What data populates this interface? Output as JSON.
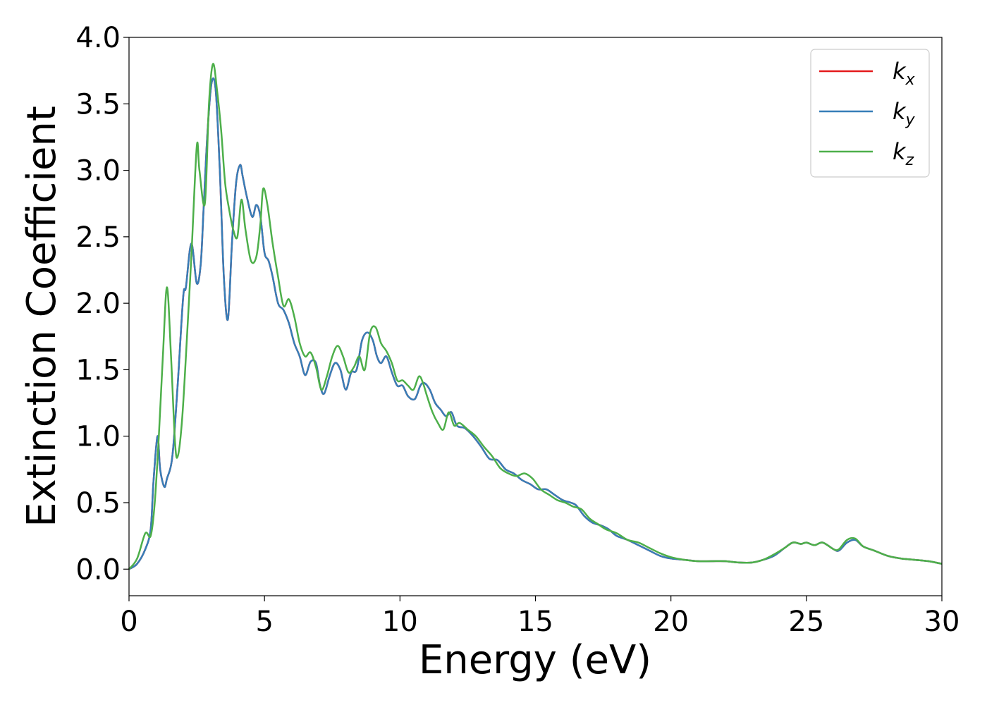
{
  "chart_data": {
    "type": "line",
    "title": "",
    "xlabel": "Energy (eV)",
    "ylabel": "Extinction Coefficient",
    "xlim": [
      0,
      30
    ],
    "ylim": [
      -0.2,
      4.0
    ],
    "xticks": [
      "0",
      "5",
      "10",
      "15",
      "20",
      "25",
      "30"
    ],
    "xtick_values": [
      0,
      5,
      10,
      15,
      20,
      25,
      30
    ],
    "yticks": [
      "0.0",
      "0.5",
      "1.0",
      "1.5",
      "2.0",
      "2.5",
      "3.0",
      "3.5",
      "4.0"
    ],
    "ytick_values": [
      0,
      0.5,
      1.0,
      1.5,
      2.0,
      2.5,
      3.0,
      3.5,
      4.0
    ],
    "grid": false,
    "legend_position": "top-right",
    "legend": [
      {
        "base": "k",
        "sub": "x",
        "color": "#e41a1c"
      },
      {
        "base": "k",
        "sub": "y",
        "color": "#377eb8"
      },
      {
        "base": "k",
        "sub": "z",
        "color": "#4daf4a"
      }
    ],
    "series": [
      {
        "color": "#e41a1c",
        "x": [
          0,
          0.3,
          0.6,
          0.8,
          0.9,
          1.05,
          1.15,
          1.3,
          1.4,
          1.6,
          1.8,
          2.0,
          2.1,
          2.3,
          2.5,
          2.65,
          2.75,
          2.9,
          3.05,
          3.2,
          3.35,
          3.5,
          3.65,
          3.8,
          3.95,
          4.1,
          4.2,
          4.35,
          4.55,
          4.7,
          4.85,
          5.0,
          5.15,
          5.3,
          5.5,
          5.7,
          5.9,
          6.1,
          6.3,
          6.5,
          6.7,
          6.9,
          7.05,
          7.2,
          7.4,
          7.6,
          7.8,
          8.0,
          8.2,
          8.4,
          8.6,
          8.8,
          9.0,
          9.15,
          9.3,
          9.5,
          9.7,
          9.9,
          10.1,
          10.3,
          10.55,
          10.75,
          10.9,
          11.1,
          11.3,
          11.5,
          11.7,
          11.9,
          12.1,
          12.4,
          12.7,
          13.0,
          13.3,
          13.6,
          13.9,
          14.2,
          14.5,
          14.8,
          15.1,
          15.4,
          15.7,
          16.0,
          16.3,
          16.5,
          16.8,
          17.1,
          17.4,
          17.7,
          18.0,
          18.4,
          18.8,
          19.2,
          19.6,
          20.0,
          20.5,
          21.0,
          21.5,
          22.0,
          22.5,
          23.0,
          23.4,
          23.8,
          24.2,
          24.5,
          24.8,
          25.0,
          25.3,
          25.6,
          26.0,
          26.2,
          26.5,
          26.8,
          27.1,
          27.5,
          28.0,
          28.5,
          29.0,
          29.5,
          30.0
        ],
        "y": [
          0.0,
          0.04,
          0.15,
          0.3,
          0.65,
          1.0,
          0.75,
          0.62,
          0.68,
          0.85,
          1.4,
          2.05,
          2.12,
          2.45,
          2.15,
          2.3,
          2.7,
          3.3,
          3.66,
          3.6,
          3.0,
          2.2,
          1.88,
          2.45,
          2.9,
          3.04,
          2.95,
          2.8,
          2.65,
          2.74,
          2.65,
          2.38,
          2.32,
          2.2,
          2.0,
          1.95,
          1.85,
          1.7,
          1.6,
          1.46,
          1.56,
          1.55,
          1.38,
          1.32,
          1.45,
          1.55,
          1.5,
          1.35,
          1.48,
          1.5,
          1.72,
          1.78,
          1.72,
          1.6,
          1.55,
          1.6,
          1.48,
          1.38,
          1.38,
          1.3,
          1.28,
          1.38,
          1.4,
          1.35,
          1.25,
          1.2,
          1.15,
          1.18,
          1.08,
          1.06,
          1.0,
          0.92,
          0.83,
          0.82,
          0.75,
          0.72,
          0.67,
          0.64,
          0.6,
          0.6,
          0.56,
          0.52,
          0.5,
          0.48,
          0.4,
          0.35,
          0.33,
          0.3,
          0.25,
          0.22,
          0.18,
          0.14,
          0.1,
          0.08,
          0.07,
          0.06,
          0.06,
          0.06,
          0.05,
          0.05,
          0.07,
          0.1,
          0.16,
          0.2,
          0.19,
          0.2,
          0.18,
          0.2,
          0.15,
          0.14,
          0.2,
          0.22,
          0.17,
          0.14,
          0.1,
          0.08,
          0.07,
          0.06,
          0.04
        ]
      },
      {
        "color": "#377eb8",
        "x": [
          0,
          0.3,
          0.6,
          0.8,
          0.9,
          1.05,
          1.15,
          1.3,
          1.4,
          1.6,
          1.8,
          2.0,
          2.1,
          2.3,
          2.5,
          2.65,
          2.75,
          2.9,
          3.05,
          3.2,
          3.35,
          3.5,
          3.65,
          3.8,
          3.95,
          4.1,
          4.2,
          4.35,
          4.55,
          4.7,
          4.85,
          5.0,
          5.15,
          5.3,
          5.5,
          5.7,
          5.9,
          6.1,
          6.3,
          6.5,
          6.7,
          6.9,
          7.05,
          7.2,
          7.4,
          7.6,
          7.8,
          8.0,
          8.2,
          8.4,
          8.6,
          8.8,
          9.0,
          9.15,
          9.3,
          9.5,
          9.7,
          9.9,
          10.1,
          10.3,
          10.55,
          10.75,
          10.9,
          11.1,
          11.3,
          11.5,
          11.7,
          11.9,
          12.1,
          12.4,
          12.7,
          13.0,
          13.3,
          13.6,
          13.9,
          14.2,
          14.5,
          14.8,
          15.1,
          15.4,
          15.7,
          16.0,
          16.3,
          16.5,
          16.8,
          17.1,
          17.4,
          17.7,
          18.0,
          18.4,
          18.8,
          19.2,
          19.6,
          20.0,
          20.5,
          21.0,
          21.5,
          22.0,
          22.5,
          23.0,
          23.4,
          23.8,
          24.2,
          24.5,
          24.8,
          25.0,
          25.3,
          25.6,
          26.0,
          26.2,
          26.5,
          26.8,
          27.1,
          27.5,
          28.0,
          28.5,
          29.0,
          29.5,
          30.0
        ],
        "y": [
          0.0,
          0.04,
          0.15,
          0.3,
          0.65,
          1.0,
          0.75,
          0.62,
          0.68,
          0.85,
          1.4,
          2.05,
          2.12,
          2.45,
          2.15,
          2.3,
          2.7,
          3.3,
          3.66,
          3.6,
          3.0,
          2.2,
          1.88,
          2.45,
          2.9,
          3.04,
          2.95,
          2.8,
          2.65,
          2.74,
          2.65,
          2.38,
          2.32,
          2.2,
          2.0,
          1.95,
          1.85,
          1.7,
          1.6,
          1.46,
          1.56,
          1.55,
          1.38,
          1.32,
          1.45,
          1.55,
          1.5,
          1.35,
          1.48,
          1.5,
          1.72,
          1.78,
          1.72,
          1.6,
          1.55,
          1.6,
          1.48,
          1.38,
          1.38,
          1.3,
          1.28,
          1.38,
          1.4,
          1.35,
          1.25,
          1.2,
          1.15,
          1.18,
          1.08,
          1.06,
          1.0,
          0.92,
          0.83,
          0.82,
          0.75,
          0.72,
          0.67,
          0.64,
          0.6,
          0.6,
          0.56,
          0.52,
          0.5,
          0.48,
          0.4,
          0.35,
          0.33,
          0.3,
          0.25,
          0.22,
          0.18,
          0.14,
          0.1,
          0.08,
          0.07,
          0.06,
          0.06,
          0.06,
          0.05,
          0.05,
          0.07,
          0.1,
          0.16,
          0.2,
          0.19,
          0.2,
          0.18,
          0.2,
          0.15,
          0.14,
          0.2,
          0.22,
          0.17,
          0.14,
          0.1,
          0.08,
          0.07,
          0.06,
          0.04
        ]
      },
      {
        "color": "#4daf4a",
        "x": [
          0,
          0.3,
          0.6,
          0.8,
          0.95,
          1.1,
          1.25,
          1.4,
          1.55,
          1.7,
          1.8,
          1.95,
          2.1,
          2.3,
          2.5,
          2.6,
          2.8,
          2.95,
          3.1,
          3.25,
          3.4,
          3.55,
          3.7,
          3.85,
          4.0,
          4.15,
          4.3,
          4.5,
          4.7,
          4.85,
          4.95,
          5.1,
          5.3,
          5.5,
          5.7,
          5.9,
          6.1,
          6.3,
          6.5,
          6.7,
          6.9,
          7.1,
          7.3,
          7.5,
          7.7,
          7.9,
          8.1,
          8.3,
          8.5,
          8.7,
          8.9,
          9.1,
          9.3,
          9.5,
          9.7,
          9.9,
          10.1,
          10.3,
          10.5,
          10.7,
          10.85,
          11.0,
          11.2,
          11.4,
          11.6,
          11.8,
          12.0,
          12.2,
          12.5,
          12.8,
          13.1,
          13.4,
          13.7,
          14.0,
          14.3,
          14.6,
          14.9,
          15.2,
          15.5,
          15.8,
          16.1,
          16.4,
          16.7,
          17.0,
          17.3,
          17.6,
          18.0,
          18.4,
          18.8,
          19.2,
          19.6,
          20.0,
          20.5,
          21.0,
          21.5,
          22.0,
          22.5,
          23.0,
          23.4,
          23.8,
          24.2,
          24.5,
          24.8,
          25.0,
          25.3,
          25.6,
          26.0,
          26.2,
          26.5,
          26.8,
          27.1,
          27.5,
          28.0,
          28.5,
          29.0,
          29.5,
          30.0
        ],
        "y": [
          0.0,
          0.08,
          0.27,
          0.25,
          0.5,
          1.0,
          1.6,
          2.12,
          1.6,
          0.95,
          0.85,
          1.1,
          1.6,
          2.35,
          3.18,
          3.0,
          2.75,
          3.5,
          3.8,
          3.6,
          3.3,
          2.9,
          2.7,
          2.55,
          2.5,
          2.78,
          2.55,
          2.32,
          2.35,
          2.6,
          2.86,
          2.75,
          2.45,
          2.2,
          1.98,
          2.03,
          1.9,
          1.7,
          1.6,
          1.63,
          1.52,
          1.35,
          1.45,
          1.6,
          1.68,
          1.6,
          1.48,
          1.52,
          1.6,
          1.5,
          1.78,
          1.82,
          1.7,
          1.64,
          1.55,
          1.42,
          1.42,
          1.38,
          1.35,
          1.45,
          1.4,
          1.3,
          1.18,
          1.1,
          1.05,
          1.18,
          1.08,
          1.1,
          1.05,
          1.0,
          0.92,
          0.85,
          0.76,
          0.72,
          0.7,
          0.72,
          0.68,
          0.6,
          0.56,
          0.52,
          0.5,
          0.47,
          0.45,
          0.38,
          0.34,
          0.3,
          0.27,
          0.22,
          0.2,
          0.16,
          0.12,
          0.09,
          0.07,
          0.06,
          0.06,
          0.06,
          0.05,
          0.05,
          0.07,
          0.11,
          0.16,
          0.2,
          0.19,
          0.2,
          0.18,
          0.2,
          0.15,
          0.15,
          0.22,
          0.23,
          0.17,
          0.14,
          0.1,
          0.08,
          0.07,
          0.06,
          0.04
        ]
      }
    ]
  }
}
